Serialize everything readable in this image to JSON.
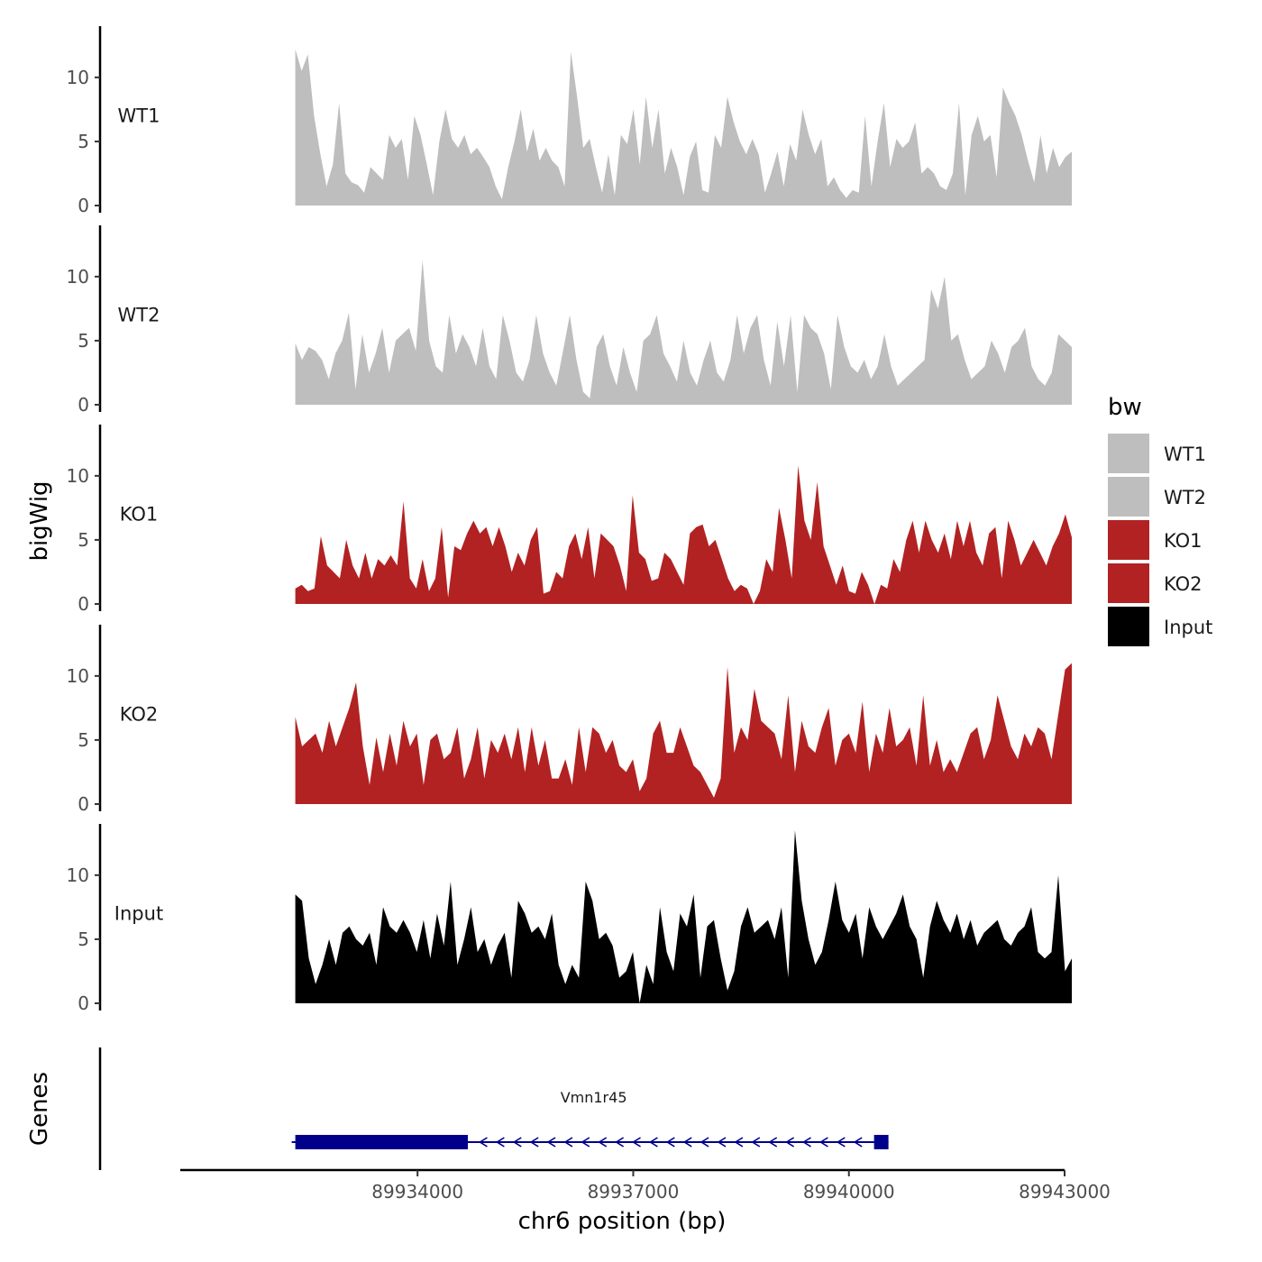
{
  "chart_data": {
    "type": "area",
    "description_note": "Genome browser: five stacked bigWig coverage tracks plus a gene track",
    "xlabel": "chr6 position (bp)",
    "ylabel": "bigWig",
    "gene_track_label": "Genes",
    "xlim": [
      89930700,
      89943000
    ],
    "x_ticks": [
      89934000,
      89937000,
      89940000,
      89943000
    ],
    "x_tick_labels": [
      "89934000",
      "89937000",
      "89940000",
      "89943000"
    ],
    "ylim": [
      0,
      14
    ],
    "y_ticks": [
      0,
      5,
      10
    ],
    "y_tick_labels": [
      "0",
      "5",
      "10"
    ],
    "data_start": 89932300,
    "data_end": 89943100,
    "colors": {
      "WT1": "#bebebe",
      "WT2": "#bebebe",
      "KO1": "#b22222",
      "KO2": "#b22222",
      "Input": "#000000",
      "gene": "#00008b"
    },
    "series": [
      {
        "name": "WT1",
        "label": "WT1",
        "color": "#bebebe",
        "values": [
          12.2,
          10.5,
          11.8,
          7.0,
          4.0,
          1.5,
          3.2,
          8.0,
          2.5,
          1.8,
          1.6,
          1.0,
          3.0,
          2.5,
          2.0,
          5.5,
          4.5,
          5.2,
          2.0,
          7.0,
          5.5,
          3.2,
          0.8,
          5.0,
          7.5,
          5.2,
          4.5,
          5.5,
          4.0,
          4.5,
          3.8,
          3.0,
          1.5,
          0.5,
          3.0,
          5.0,
          7.5,
          4.2,
          6.0,
          3.5,
          4.5,
          3.5,
          3.0,
          1.5,
          12.0,
          8.5,
          4.5,
          5.2,
          3.0,
          1.0,
          4.0,
          0.8,
          5.5,
          4.8,
          7.5,
          3.2,
          8.5,
          4.5,
          7.5,
          2.5,
          4.5,
          3.0,
          0.8,
          3.8,
          5.0,
          1.2,
          1.0,
          5.5,
          4.5,
          8.5,
          6.5,
          5.0,
          4.0,
          5.2,
          4.0,
          1.0,
          2.5,
          4.2,
          1.5,
          4.8,
          3.5,
          7.5,
          5.5,
          4.0,
          5.2,
          1.5,
          2.2,
          1.2,
          0.6,
          1.2,
          1.0,
          7.0,
          1.5,
          5.0,
          8.0,
          3.0,
          5.2,
          4.5,
          5.0,
          6.5,
          2.5,
          3.0,
          2.5,
          1.5,
          1.2,
          2.5,
          8.0,
          0.8,
          5.5,
          7.0,
          5.0,
          5.5,
          2.2,
          9.2,
          8.0,
          7.0,
          5.5,
          3.5,
          1.8,
          5.5,
          2.5,
          4.5,
          3.0,
          3.8,
          4.2
        ]
      },
      {
        "name": "WT2",
        "label": "WT2",
        "color": "#bebebe",
        "values": [
          4.8,
          3.5,
          4.5,
          4.2,
          3.5,
          2.0,
          4.0,
          5.0,
          7.2,
          1.2,
          5.5,
          2.5,
          4.0,
          6.0,
          2.5,
          5.0,
          5.5,
          6.0,
          4.2,
          11.3,
          5.0,
          3.0,
          2.5,
          7.0,
          4.0,
          5.5,
          4.5,
          3.0,
          6.0,
          3.0,
          2.0,
          7.0,
          5.0,
          2.5,
          1.8,
          3.5,
          7.0,
          4.0,
          2.5,
          1.5,
          4.2,
          7.0,
          3.5,
          1.0,
          0.5,
          4.5,
          5.5,
          3.0,
          1.5,
          4.5,
          2.5,
          1.0,
          5.0,
          5.5,
          7.0,
          4.0,
          3.0,
          1.8,
          5.0,
          2.5,
          1.5,
          3.5,
          5.0,
          2.5,
          1.8,
          3.5,
          7.0,
          4.0,
          6.0,
          7.0,
          3.5,
          1.5,
          6.5,
          3.0,
          7.0,
          1.0,
          7.0,
          6.0,
          5.5,
          4.0,
          1.2,
          7.0,
          4.5,
          3.0,
          2.5,
          3.5,
          2.0,
          3.0,
          5.5,
          3.0,
          1.5,
          2.0,
          2.5,
          3.0,
          3.5,
          9.0,
          7.5,
          10.0,
          5.0,
          5.5,
          3.5,
          2.0,
          2.5,
          3.0,
          5.0,
          4.0,
          2.5,
          4.5,
          5.0,
          6.0,
          3.0,
          2.0,
          1.5,
          2.5,
          5.5,
          5.0,
          4.5
        ]
      },
      {
        "name": "KO1",
        "label": "KO1",
        "color": "#b22222",
        "values": [
          1.2,
          1.5,
          1.0,
          1.2,
          5.3,
          3.0,
          2.5,
          2.0,
          5.0,
          3.0,
          2.0,
          4.0,
          2.0,
          3.5,
          3.0,
          3.8,
          3.0,
          8.0,
          2.0,
          1.2,
          3.5,
          1.0,
          2.0,
          6.0,
          0.5,
          4.5,
          4.2,
          5.5,
          6.5,
          5.5,
          6.0,
          4.5,
          6.0,
          4.5,
          2.5,
          4.0,
          3.0,
          5.0,
          6.0,
          0.8,
          1.0,
          2.5,
          2.0,
          4.5,
          5.5,
          3.5,
          6.0,
          2.0,
          5.5,
          5.0,
          4.5,
          3.0,
          1.0,
          8.5,
          4.0,
          3.5,
          1.8,
          2.0,
          4.0,
          3.5,
          2.5,
          1.5,
          5.5,
          6.0,
          6.2,
          4.5,
          5.0,
          3.5,
          2.0,
          1.0,
          1.5,
          1.2,
          0.0,
          1.0,
          3.5,
          2.5,
          7.5,
          5.0,
          2.0,
          10.8,
          6.5,
          5.0,
          9.5,
          4.5,
          3.0,
          1.5,
          3.0,
          1.0,
          0.8,
          2.5,
          1.5,
          0.0,
          1.5,
          1.2,
          3.5,
          2.5,
          5.0,
          6.5,
          4.0,
          6.5,
          5.0,
          4.0,
          5.5,
          3.5,
          6.5,
          4.5,
          6.5,
          4.0,
          3.0,
          5.5,
          6.0,
          2.0,
          6.5,
          5.0,
          3.0,
          4.0,
          5.0,
          4.0,
          3.0,
          4.5,
          5.5,
          7.0,
          5.2
        ]
      },
      {
        "name": "KO2",
        "label": "KO2",
        "color": "#b22222",
        "values": [
          6.8,
          4.5,
          5.0,
          5.5,
          4.0,
          6.5,
          4.5,
          6.0,
          7.5,
          9.5,
          4.5,
          1.5,
          5.2,
          2.5,
          5.5,
          3.0,
          6.5,
          4.5,
          5.5,
          1.5,
          5.0,
          5.5,
          3.5,
          4.0,
          6.0,
          2.0,
          3.5,
          6.0,
          2.0,
          5.0,
          4.0,
          5.5,
          3.5,
          6.0,
          2.5,
          6.0,
          3.0,
          5.0,
          2.0,
          2.0,
          3.5,
          1.5,
          6.0,
          2.5,
          6.0,
          5.5,
          4.0,
          5.0,
          3.0,
          2.5,
          3.5,
          1.0,
          2.0,
          5.5,
          6.5,
          4.0,
          4.0,
          6.0,
          4.5,
          3.0,
          2.5,
          1.5,
          0.5,
          2.0,
          10.7,
          4.0,
          6.0,
          5.0,
          9.0,
          6.5,
          6.0,
          5.5,
          3.5,
          8.5,
          2.5,
          6.5,
          4.5,
          4.0,
          6.0,
          7.5,
          3.0,
          5.0,
          5.5,
          4.0,
          8.0,
          2.5,
          5.5,
          4.0,
          7.5,
          4.5,
          5.0,
          6.0,
          3.0,
          8.5,
          3.0,
          5.0,
          2.5,
          3.5,
          2.5,
          4.0,
          5.5,
          6.0,
          3.5,
          5.0,
          8.5,
          6.5,
          4.5,
          3.5,
          5.5,
          4.5,
          6.0,
          5.5,
          3.5,
          7.0,
          10.5,
          11.0
        ]
      },
      {
        "name": "Input",
        "label": "Input",
        "color": "#000000",
        "values": [
          8.5,
          8.0,
          3.5,
          1.5,
          3.0,
          5.0,
          3.0,
          5.5,
          6.0,
          5.0,
          4.5,
          5.5,
          3.0,
          7.5,
          6.0,
          5.5,
          6.5,
          5.5,
          4.0,
          6.5,
          3.5,
          7.0,
          4.5,
          9.5,
          3.0,
          5.0,
          7.5,
          4.0,
          5.0,
          3.0,
          4.5,
          5.5,
          2.0,
          8.0,
          7.0,
          5.5,
          6.0,
          5.0,
          7.0,
          3.0,
          1.5,
          3.0,
          2.0,
          9.5,
          8.0,
          5.0,
          5.5,
          4.5,
          2.0,
          2.5,
          4.0,
          0.0,
          3.0,
          1.5,
          7.5,
          4.0,
          2.5,
          7.0,
          6.0,
          8.5,
          2.0,
          6.0,
          6.5,
          3.5,
          1.0,
          2.5,
          6.0,
          7.5,
          5.5,
          6.0,
          6.5,
          5.0,
          7.5,
          2.0,
          13.5,
          8.0,
          5.0,
          3.0,
          4.0,
          6.5,
          9.5,
          6.5,
          5.5,
          7.0,
          3.5,
          7.5,
          6.0,
          5.0,
          6.0,
          7.0,
          8.5,
          6.0,
          5.0,
          2.0,
          6.0,
          8.0,
          6.5,
          5.5,
          7.0,
          5.0,
          6.5,
          4.5,
          5.5,
          6.0,
          6.5,
          5.0,
          4.5,
          5.5,
          6.0,
          7.5,
          4.0,
          3.5,
          4.0,
          10.0,
          2.5,
          3.5
        ]
      }
    ],
    "legend": {
      "title": "bw",
      "position": "right",
      "entries": [
        {
          "label": "WT1",
          "color": "#bebebe"
        },
        {
          "label": "WT2",
          "color": "#bebebe"
        },
        {
          "label": "KO1",
          "color": "#b22222"
        },
        {
          "label": "KO2",
          "color": "#b22222"
        },
        {
          "label": "Input",
          "color": "#000000"
        }
      ]
    },
    "gene": {
      "name": "Vmn1r45",
      "strand": "-",
      "start": 89932300,
      "end": 89940550,
      "exons": [
        [
          89932300,
          89934700
        ],
        [
          89940350,
          89940550
        ]
      ],
      "intron_arrow_count": 23
    }
  }
}
